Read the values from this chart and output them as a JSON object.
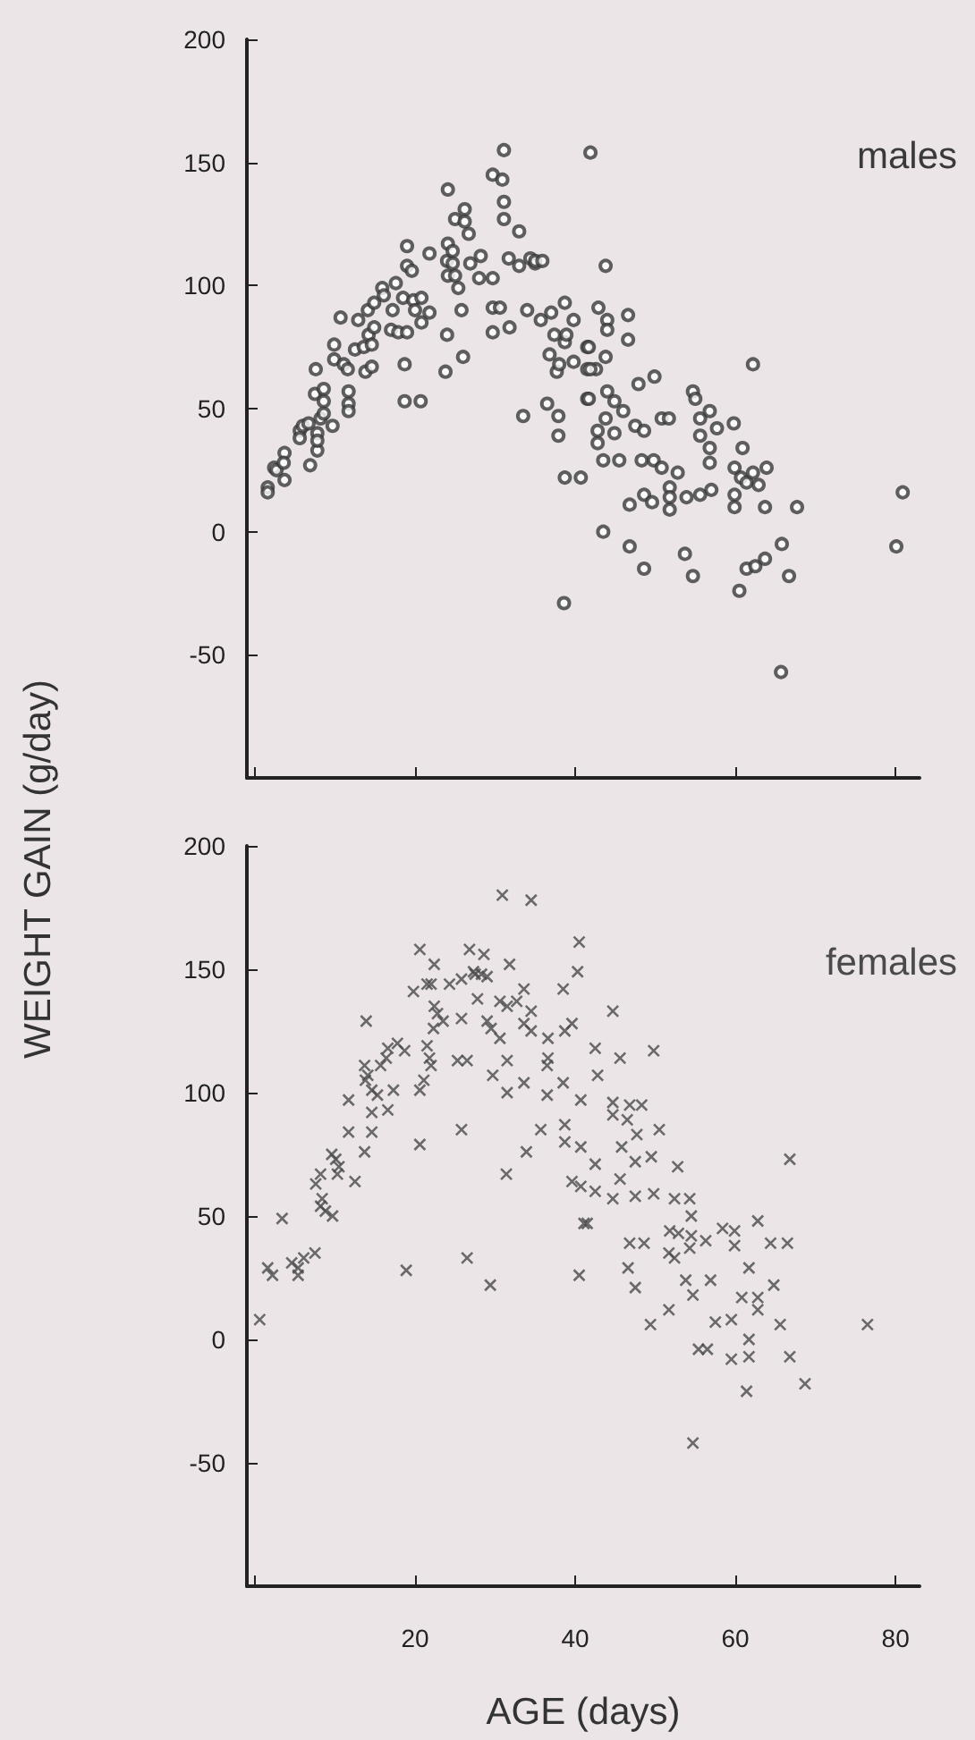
{
  "chart_data": [
    {
      "type": "scatter",
      "ylabel": "WEIGHT GAIN (g/day)",
      "xlim": [
        -1,
        83
      ],
      "ylim": [
        -100,
        200
      ],
      "xticks": [
        {
          "value": 0,
          "label": null
        },
        {
          "value": 20,
          "label": null
        },
        {
          "value": 40,
          "label": null
        },
        {
          "value": 60,
          "label": null
        },
        {
          "value": 80,
          "label": null
        }
      ],
      "yticks": [
        -50,
        0,
        50,
        100,
        150,
        200
      ],
      "tick_labels": "y",
      "marker": "circle",
      "grid": false,
      "legend": false,
      "series": [
        {
          "name": "males",
          "color": "#3a3a3a",
          "x": [
            1.6,
            1.6,
            2.4,
            2.7,
            3.7,
            3.6,
            3.7,
            5.6,
            5.6,
            6,
            6.7,
            6.9,
            7.6,
            7.5,
            7.8,
            7.8,
            7.8,
            8.2,
            8.6,
            8.6,
            8.6,
            9.7,
            9.9,
            9.9,
            10.7,
            11.1,
            11.6,
            11.7,
            11.7,
            11.7,
            12.5,
            12.9,
            13.6,
            13.8,
            14.1,
            14.2,
            14.6,
            14.6,
            14.9,
            14.9,
            15.9,
            16.1,
            17,
            17.2,
            17.6,
            17.9,
            18.5,
            18.7,
            18.7,
            19,
            19,
            19,
            19.6,
            19.8,
            20,
            20.7,
            20.8,
            20.8,
            21.8,
            21.8,
            23.8,
            24,
            24.1,
            24.1,
            24,
            24.1,
            24.7,
            24.7,
            25,
            25,
            25.4,
            25.8,
            26,
            26.2,
            26.2,
            26.7,
            26.9,
            28,
            28.2,
            29.7,
            29.7,
            29.7,
            29.7,
            30.6,
            30.9,
            31.1,
            31.1,
            31.1,
            31.7,
            31.8,
            33,
            33,
            33.5,
            34,
            34.4,
            35,
            35,
            35.7,
            35.9,
            36.5,
            36.8,
            37,
            37.4,
            37.7,
            37.9,
            37.9,
            38,
            38.6,
            38.7,
            38.7,
            38.7,
            38.9,
            39.8,
            39.8,
            40.7,
            41.5,
            41.5,
            41.5,
            41.9,
            43.8,
            42.9,
            44,
            44,
            46.6,
            46.6,
            41.7,
            43.8,
            42.6,
            41.9,
            41.7,
            44,
            44.9,
            46,
            43.8,
            44.9,
            42.8,
            42.8,
            47.5,
            48.6,
            47.9,
            49.9,
            50.8,
            51.7,
            43.5,
            45.5,
            48.3,
            49.8,
            50.8,
            52.8,
            51.8,
            51.8,
            51.8,
            53.9,
            55.6,
            57,
            46.8,
            48.6,
            49.6,
            54.7,
            55,
            55.6,
            56.8,
            57.7,
            55.6,
            56.8,
            56.8,
            59.8,
            60.9,
            59.9,
            60.7,
            61.4,
            62.2,
            62.2,
            62.9,
            63.9,
            59.9,
            59.9,
            63.7,
            67.7,
            43.5,
            46.8,
            48.6,
            53.7,
            54.7,
            61.4,
            62.5,
            63.7,
            65.8,
            66.7,
            60.5,
            65.7,
            80.9,
            80.1
          ],
          "values": [
            18,
            16,
            26,
            25,
            32,
            28,
            21,
            41,
            38,
            43,
            44,
            27,
            66,
            56,
            40,
            33,
            37,
            46,
            58,
            53,
            48,
            43,
            76,
            70,
            87,
            68,
            66,
            57,
            52,
            49,
            74,
            86,
            75,
            65,
            90,
            80,
            76,
            67,
            83,
            93,
            99,
            96,
            82,
            90,
            101,
            81,
            95,
            68,
            53,
            116,
            108,
            81,
            106,
            94,
            90,
            53,
            95,
            85,
            89,
            113,
            65,
            80,
            139,
            117,
            110,
            104,
            114,
            109,
            127,
            104,
            99,
            90,
            71,
            131,
            126,
            121,
            109,
            103,
            112,
            145,
            103,
            81,
            91,
            91,
            143,
            155,
            134,
            127,
            111,
            83,
            122,
            108,
            47,
            90,
            111,
            109,
            110,
            86,
            110,
            52,
            72,
            89,
            80,
            65,
            47,
            39,
            68,
            -29,
            22,
            93,
            77,
            80,
            86,
            69,
            22,
            75,
            54,
            66,
            154,
            108,
            91,
            86,
            82,
            88,
            78,
            75,
            71,
            66,
            66,
            54,
            57,
            53,
            49,
            46,
            40,
            41,
            36,
            43,
            41,
            60,
            63,
            46,
            46,
            29,
            29,
            29,
            29,
            26,
            24,
            18,
            14,
            9,
            14,
            15,
            17,
            11,
            15,
            12,
            57,
            54,
            46,
            49,
            42,
            39,
            34,
            28,
            44,
            34,
            26,
            22,
            20,
            24,
            68,
            19,
            26,
            15,
            10,
            10,
            10,
            0,
            -6,
            -15,
            -9,
            -18,
            -15,
            -14,
            -11,
            -5,
            -18,
            -24,
            -57,
            16,
            -6
          ]
        }
      ]
    },
    {
      "type": "scatter",
      "xlabel": "AGE (days)",
      "xlim": [
        -1,
        83
      ],
      "ylim": [
        -100,
        200
      ],
      "xticks": [
        {
          "value": 0,
          "label": null
        },
        20,
        40,
        60,
        80
      ],
      "yticks": [
        -50,
        0,
        50,
        100,
        150,
        200
      ],
      "marker": "cross",
      "grid": false,
      "legend": false,
      "series": [
        {
          "name": "females",
          "color": "#4a4a4a",
          "x": [
            0.6,
            1.6,
            2.2,
            3.4,
            4.6,
            5.4,
            5.4,
            6.1,
            7.5,
            7.6,
            8.2,
            8.4,
            8.2,
            8.8,
            9.7,
            9.6,
            10.1,
            10.5,
            10.3,
            12.5,
            11.7,
            11.7,
            13.7,
            13.9,
            13.7,
            14.1,
            13.8,
            14.6,
            14.6,
            14.6,
            15.3,
            15.7,
            16.4,
            16.6,
            16.6,
            17.3,
            17.8,
            18.7,
            18.9,
            19.8,
            20.6,
            20.6,
            20.6,
            21.1,
            21.5,
            22,
            22.4,
            21.5,
            21.8,
            22,
            22.4,
            22.8,
            23.5,
            22.3,
            24.3,
            25.8,
            25.8,
            25.3,
            26.5,
            25.8,
            26.5,
            26.8,
            27.5,
            27.3,
            28.3,
            29,
            28.6,
            27.8,
            29,
            29.5,
            30.6,
            29.4,
            29.7,
            30.9,
            30.6,
            31.5,
            31.8,
            31.5,
            31.5,
            31.4,
            32.7,
            33.6,
            34.5,
            33.6,
            33.6,
            34.5,
            34.5,
            33.9,
            35.7,
            36.6,
            36.6,
            36.5,
            36.5,
            38.5,
            38.7,
            39.6,
            38.5,
            38.7,
            38.7,
            39.6,
            40.5,
            40.3,
            40.7,
            40.7,
            40.7,
            41.1,
            40.5,
            44.7,
            42.5,
            45.6,
            49.8,
            42.8,
            44.7,
            46.8,
            48.3,
            44.7,
            46.5,
            47.7,
            50.5,
            45.8,
            47.5,
            49.5,
            42.5,
            52.8,
            66.8,
            45.6,
            42.5,
            44.7,
            47.5,
            49.8,
            52.4,
            54.3,
            41.5,
            54.5,
            46.8,
            48.6,
            51.8,
            52.9,
            54.5,
            56.3,
            58.4,
            59.9,
            59.9,
            62.8,
            64.4,
            66.5,
            51.7,
            52.4,
            54.3,
            46.6,
            47.5,
            53.8,
            54.7,
            56.9,
            61.7,
            60.8,
            62.8,
            62.8,
            64.8,
            51.7,
            49.4,
            57.5,
            59.5,
            65.6,
            76.5,
            55.4,
            56.5,
            59.5,
            61.7,
            61.7,
            66.8,
            68.7,
            61.4,
            54.7
          ],
          "values": [
            8,
            29,
            26,
            49,
            31,
            29,
            26,
            33,
            35,
            63,
            67,
            57,
            54,
            52,
            50,
            75,
            73,
            70,
            67,
            64,
            84,
            97,
            76,
            129,
            111,
            107,
            105,
            101,
            92,
            84,
            99,
            111,
            114,
            93,
            118,
            101,
            120,
            117,
            28,
            141,
            158,
            101,
            79,
            105,
            144,
            144,
            152,
            119,
            114,
            111,
            135,
            132,
            129,
            126,
            144,
            130,
            146,
            113,
            113,
            85,
            33,
            158,
            148,
            149,
            148,
            147,
            156,
            138,
            129,
            126,
            122,
            22,
            107,
            180,
            137,
            135,
            152,
            113,
            100,
            67,
            137,
            142,
            178,
            104,
            128,
            133,
            125,
            76,
            85,
            122,
            114,
            111,
            99,
            142,
            125,
            128,
            104,
            87,
            80,
            64,
            161,
            149,
            97,
            78,
            62,
            47,
            26,
            133,
            118,
            114,
            117,
            107,
            96,
            95,
            95,
            91,
            89,
            83,
            85,
            78,
            72,
            74,
            71,
            70,
            73,
            65,
            60,
            57,
            58,
            59,
            57,
            57,
            47,
            50,
            39,
            39,
            44,
            43,
            42,
            40,
            45,
            44,
            38,
            48,
            39,
            39,
            35,
            33,
            37,
            29,
            21,
            24,
            18,
            24,
            29,
            17,
            17,
            12,
            22,
            12,
            6,
            7,
            8,
            6,
            6,
            -4,
            -4,
            -8,
            -7,
            0,
            -7,
            -18,
            -21,
            -42
          ]
        }
      ]
    }
  ]
}
